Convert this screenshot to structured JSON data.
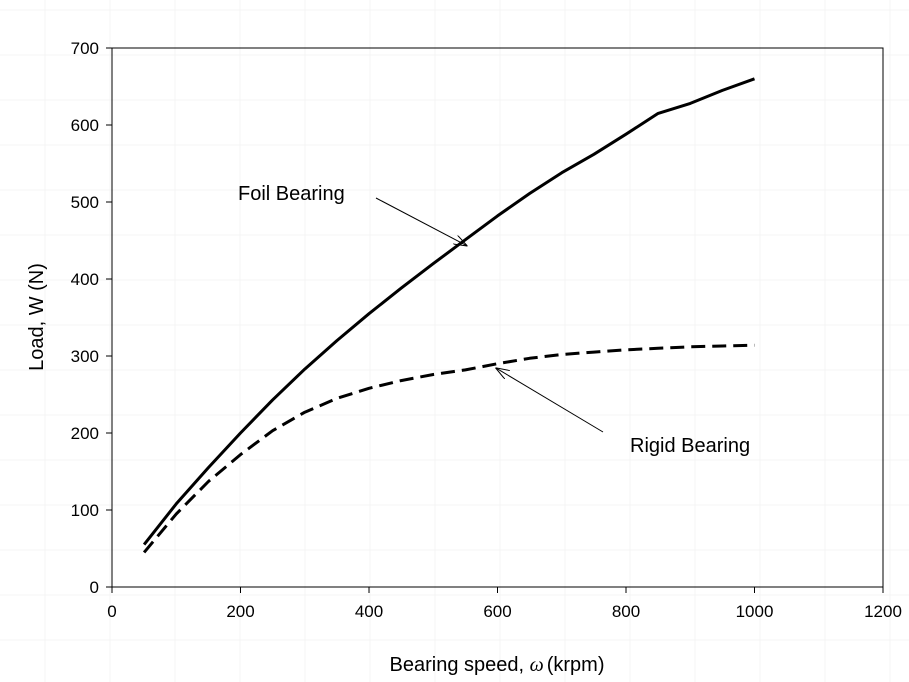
{
  "chart_data": {
    "type": "line",
    "xlabel_parts": [
      "Bearing speed, ",
      "ω",
      "(krpm)"
    ],
    "ylabel": "Load, W (N)",
    "xlim": [
      0,
      1200
    ],
    "ylim": [
      0,
      700
    ],
    "xticks": [
      0,
      200,
      400,
      600,
      800,
      1000,
      1200
    ],
    "yticks": [
      0,
      100,
      200,
      300,
      400,
      500,
      600,
      700
    ],
    "grid": false,
    "series": [
      {
        "name": "Foil Bearing",
        "style": "solid",
        "color": "#000000",
        "x": [
          50,
          100,
          150,
          200,
          250,
          300,
          350,
          400,
          450,
          500,
          550,
          600,
          650,
          700,
          750,
          800,
          850,
          900,
          950,
          1000
        ],
        "y": [
          55,
          108,
          155,
          200,
          243,
          283,
          320,
          355,
          388,
          420,
          451,
          482,
          511,
          538,
          562,
          588,
          615,
          628,
          645,
          660
        ]
      },
      {
        "name": "Rigid Bearing",
        "style": "dashed",
        "color": "#000000",
        "x": [
          50,
          100,
          150,
          200,
          250,
          300,
          350,
          400,
          450,
          500,
          550,
          600,
          650,
          700,
          750,
          800,
          850,
          900,
          950,
          1000
        ],
        "y": [
          45,
          95,
          137,
          172,
          203,
          227,
          245,
          258,
          268,
          276,
          282,
          290,
          297,
          302,
          305,
          308,
          310,
          312,
          313,
          314
        ]
      }
    ],
    "annotations": [
      {
        "text": "Foil Bearing",
        "target": [
          555,
          446
        ],
        "label_anchor": "left"
      },
      {
        "text": "Rigid Bearing",
        "target": [
          595,
          288
        ],
        "label_anchor": "below-right"
      }
    ]
  }
}
